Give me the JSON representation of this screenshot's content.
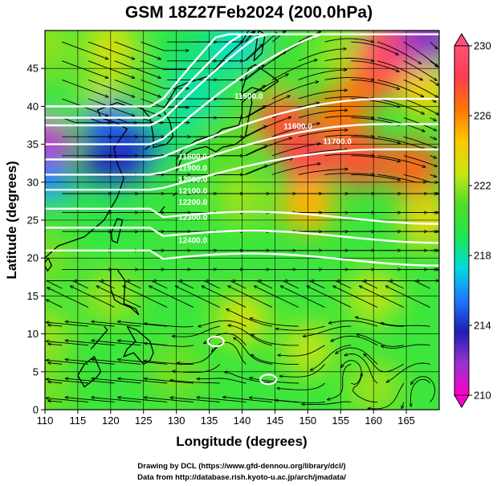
{
  "chart_data": {
    "type": "heatmap",
    "title": "GSM 18Z27Feb2024 (200.0hPa)",
    "xlabel": "Longitude (degrees)",
    "ylabel": "Latitude  (degrees)",
    "xlim": [
      110,
      170
    ],
    "ylim": [
      0,
      50
    ],
    "xticks": [
      110,
      115,
      120,
      125,
      130,
      135,
      140,
      145,
      150,
      155,
      160,
      165
    ],
    "yticks": [
      0,
      5,
      10,
      15,
      20,
      25,
      30,
      35,
      40,
      45
    ],
    "grid": true,
    "overlay": [
      "streamlines (wind)",
      "geopotential height contours (white)"
    ],
    "colorbar": {
      "range": [
        210,
        230
      ],
      "ticks": [
        210,
        214,
        218,
        222,
        226,
        230
      ],
      "placement": "right",
      "colors": [
        "#ff00cc",
        "#9933cc",
        "#1e1eb4",
        "#1e78ff",
        "#00dcdc",
        "#1ee650",
        "#50dc28",
        "#c8e614",
        "#ffc800",
        "#ff7800",
        "#ff3c50",
        "#ff5078"
      ]
    },
    "temperature_field": [
      {
        "lon": 110,
        "lat": 48,
        "value": 222.0
      },
      {
        "lon": 110,
        "lat": 44,
        "value": 221.5
      },
      {
        "lon": 110,
        "lat": 40,
        "value": 219.5
      },
      {
        "lon": 110,
        "lat": 35,
        "value": 211.0
      },
      {
        "lon": 110,
        "lat": 30,
        "value": 215.5
      },
      {
        "lon": 110,
        "lat": 25,
        "value": 220.0
      },
      {
        "lon": 110,
        "lat": 20,
        "value": 221.5
      },
      {
        "lon": 110,
        "lat": 10,
        "value": 222.0
      },
      {
        "lon": 110,
        "lat": 3,
        "value": 221.5
      },
      {
        "lon": 120,
        "lat": 48,
        "value": 223.0
      },
      {
        "lon": 120,
        "lat": 42,
        "value": 222.5
      },
      {
        "lon": 120,
        "lat": 37,
        "value": 215.0
      },
      {
        "lon": 120,
        "lat": 32,
        "value": 213.5
      },
      {
        "lon": 120,
        "lat": 26,
        "value": 219.5
      },
      {
        "lon": 120,
        "lat": 15,
        "value": 222.0
      },
      {
        "lon": 125,
        "lat": 42,
        "value": 221.0
      },
      {
        "lon": 125,
        "lat": 34,
        "value": 214.0
      },
      {
        "lon": 130,
        "lat": 46,
        "value": 219.0
      },
      {
        "lon": 130,
        "lat": 38,
        "value": 218.5
      },
      {
        "lon": 130,
        "lat": 31,
        "value": 220.0
      },
      {
        "lon": 133,
        "lat": 42,
        "value": 218.0
      },
      {
        "lon": 135,
        "lat": 47,
        "value": 218.5
      },
      {
        "lon": 138,
        "lat": 35,
        "value": 221.0
      },
      {
        "lon": 140,
        "lat": 48,
        "value": 217.5
      },
      {
        "lon": 140,
        "lat": 28,
        "value": 222.0
      },
      {
        "lon": 145,
        "lat": 45,
        "value": 220.5
      },
      {
        "lon": 146,
        "lat": 38,
        "value": 227.5
      },
      {
        "lon": 150,
        "lat": 33,
        "value": 228.0
      },
      {
        "lon": 150,
        "lat": 27,
        "value": 225.0
      },
      {
        "lon": 155,
        "lat": 47,
        "value": 222.0
      },
      {
        "lon": 155,
        "lat": 39,
        "value": 226.5
      },
      {
        "lon": 158,
        "lat": 33,
        "value": 227.5
      },
      {
        "lon": 160,
        "lat": 44,
        "value": 227.0
      },
      {
        "lon": 162,
        "lat": 48,
        "value": 229.5
      },
      {
        "lon": 165,
        "lat": 46,
        "value": 229.0
      },
      {
        "lon": 168,
        "lat": 49,
        "value": 212.0
      },
      {
        "lon": 168,
        "lat": 42,
        "value": 224.0
      },
      {
        "lon": 166,
        "lat": 32,
        "value": 227.0
      },
      {
        "lon": 168,
        "lat": 25,
        "value": 223.5
      },
      {
        "lon": 140,
        "lat": 12,
        "value": 223.0
      },
      {
        "lon": 150,
        "lat": 8,
        "value": 222.5
      },
      {
        "lon": 160,
        "lat": 15,
        "value": 222.5
      },
      {
        "lon": 130,
        "lat": 5,
        "value": 221.5
      },
      {
        "lon": 160,
        "lat": 3,
        "value": 222.0
      }
    ],
    "height_contours": [
      {
        "label": "11500.0",
        "lat_west": 40,
        "lat_east": 45
      },
      {
        "label": "11600.0",
        "lat_west": 38.5
      },
      {
        "label": "11700.0",
        "lat_west": 37.5
      },
      {
        "label": "11800.0",
        "lat_west": 35
      },
      {
        "label": "11900.0",
        "lat_west": 33
      },
      {
        "label": "12000.0",
        "lat_west": 31
      },
      {
        "label": "12100.0",
        "lat_west": 29
      },
      {
        "label": "12200.0",
        "lat_west": 26.5
      },
      {
        "label": "12300.0",
        "lat_west": 24
      },
      {
        "label": "12400.0",
        "lat_west": 21
      }
    ],
    "closed_contours": [
      {
        "lon": 136,
        "lat": 9
      },
      {
        "lon": 144,
        "lat": 4
      }
    ],
    "contour_labels": [
      {
        "text": "11500.0",
        "lon": 141,
        "lat": 41
      },
      {
        "text": "11600.0",
        "lon": 148.5,
        "lat": 37
      },
      {
        "text": "11700.0",
        "lon": 154.5,
        "lat": 35
      },
      {
        "text": "11800.0",
        "lon": 132.5,
        "lat": 33
      },
      {
        "text": "11900.0",
        "lon": 132.5,
        "lat": 31.5
      },
      {
        "text": "12000.0",
        "lon": 132.5,
        "lat": 30
      },
      {
        "text": "12100.0",
        "lon": 132.5,
        "lat": 28.5
      },
      {
        "text": "12200.0",
        "lon": 132.5,
        "lat": 27
      },
      {
        "text": "12300.0",
        "lon": 132.5,
        "lat": 25
      },
      {
        "text": "12400.0",
        "lon": 132.5,
        "lat": 22
      }
    ]
  },
  "credits": {
    "line1": "Drawing by DCL (https://www.gfd-dennou.org/library/dcl/)",
    "line2": "Data from http://database.rish.kyoto-u.ac.jp/arch/jmadata/"
  }
}
